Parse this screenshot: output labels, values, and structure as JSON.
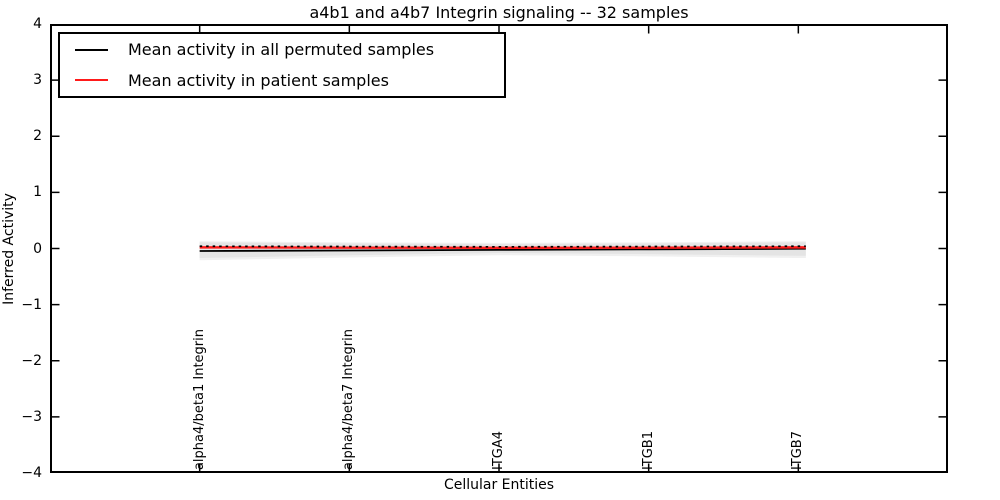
{
  "chart_data": {
    "type": "line",
    "title": "a4b1 and a4b7 Integrin signaling -- 32 samples",
    "xlabel": "Cellular Entities",
    "ylabel": "Inferred Activity",
    "xlim": [
      0,
      6
    ],
    "ylim": [
      -4,
      4
    ],
    "y_ticks": [
      4,
      3,
      2,
      1,
      0,
      -1,
      -2,
      -3,
      -4
    ],
    "x_ticks": [
      1,
      2,
      3,
      4,
      5
    ],
    "categories": [
      "alpha4/beta1 Integrin",
      "alpha4/beta7 Integrin",
      "ITGA4",
      "ITGB1",
      "ITGB7"
    ],
    "x": [
      1,
      2,
      3,
      4,
      5,
      5.05
    ],
    "series": [
      {
        "name": "Mean activity in all permuted samples",
        "color": "#000000",
        "style": "solid",
        "width": 1.8,
        "values": [
          -0.045,
          -0.035,
          -0.025,
          -0.015,
          -0.005,
          -0.005
        ]
      },
      {
        "name": "Mean activity in patient samples",
        "color": "#ff1a1a",
        "style": "solid",
        "width": 2.4,
        "values": [
          0.02,
          0.015,
          0.012,
          0.015,
          0.02,
          0.02
        ]
      },
      {
        "name": "patient-mean-marker-overlay",
        "color": "#000000",
        "style": "dashed",
        "width": 1.7,
        "values": [
          0.04,
          0.035,
          0.03,
          0.035,
          0.04,
          0.04
        ]
      }
    ],
    "bands": [
      {
        "name": "std-band-outer",
        "color": "#f0f0f0",
        "upper": [
          0.13,
          0.11,
          0.1,
          0.11,
          0.13,
          0.13
        ],
        "lower": [
          -0.21,
          -0.16,
          -0.12,
          -0.14,
          -0.17,
          -0.17
        ]
      },
      {
        "name": "std-band-inner",
        "color": "#e4e4e4",
        "upper": [
          0.11,
          0.09,
          0.08,
          0.09,
          0.11,
          0.11
        ],
        "lower": [
          -0.17,
          -0.12,
          -0.08,
          -0.1,
          -0.13,
          -0.13
        ]
      }
    ],
    "legend": {
      "position": "upper left",
      "items": [
        {
          "label": "Mean activity in all permuted samples",
          "color": "#000000"
        },
        {
          "label": "Mean activity in patient samples",
          "color": "#ff1a1a"
        }
      ]
    },
    "grid": false,
    "n_samples_in_title": 32
  }
}
